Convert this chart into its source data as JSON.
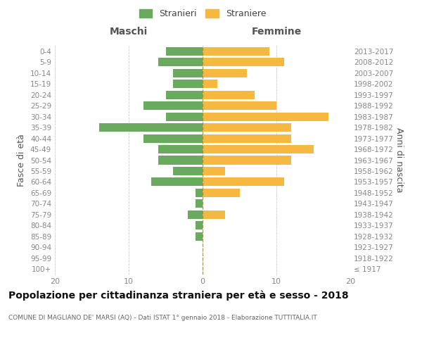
{
  "age_groups": [
    "100+",
    "95-99",
    "90-94",
    "85-89",
    "80-84",
    "75-79",
    "70-74",
    "65-69",
    "60-64",
    "55-59",
    "50-54",
    "45-49",
    "40-44",
    "35-39",
    "30-34",
    "25-29",
    "20-24",
    "15-19",
    "10-14",
    "5-9",
    "0-4"
  ],
  "birth_years": [
    "≤ 1917",
    "1918-1922",
    "1923-1927",
    "1928-1932",
    "1933-1937",
    "1938-1942",
    "1943-1947",
    "1948-1952",
    "1953-1957",
    "1958-1962",
    "1963-1967",
    "1968-1972",
    "1973-1977",
    "1978-1982",
    "1983-1987",
    "1988-1992",
    "1993-1997",
    "1998-2002",
    "2003-2007",
    "2008-2012",
    "2013-2017"
  ],
  "maschi": [
    0,
    0,
    0,
    1,
    1,
    2,
    1,
    1,
    7,
    4,
    6,
    6,
    8,
    14,
    5,
    8,
    5,
    4,
    4,
    6,
    5
  ],
  "femmine": [
    0,
    0,
    0,
    0,
    0,
    3,
    0,
    5,
    11,
    3,
    12,
    15,
    12,
    12,
    17,
    10,
    7,
    2,
    6,
    11,
    9
  ],
  "maschi_color": "#6aaa5f",
  "femmine_color": "#f5b942",
  "background_color": "#ffffff",
  "grid_color": "#cccccc",
  "title": "Popolazione per cittadinanza straniera per età e sesso - 2018",
  "subtitle": "COMUNE DI MAGLIANO DE' MARSI (AQ) - Dati ISTAT 1° gennaio 2018 - Elaborazione TUTTITALIA.IT",
  "xlabel_left": "Maschi",
  "xlabel_right": "Femmine",
  "ylabel_left": "Fasce di età",
  "ylabel_right": "Anni di nascita",
  "legend_stranieri": "Stranieri",
  "legend_straniere": "Straniere",
  "xlim": 20
}
